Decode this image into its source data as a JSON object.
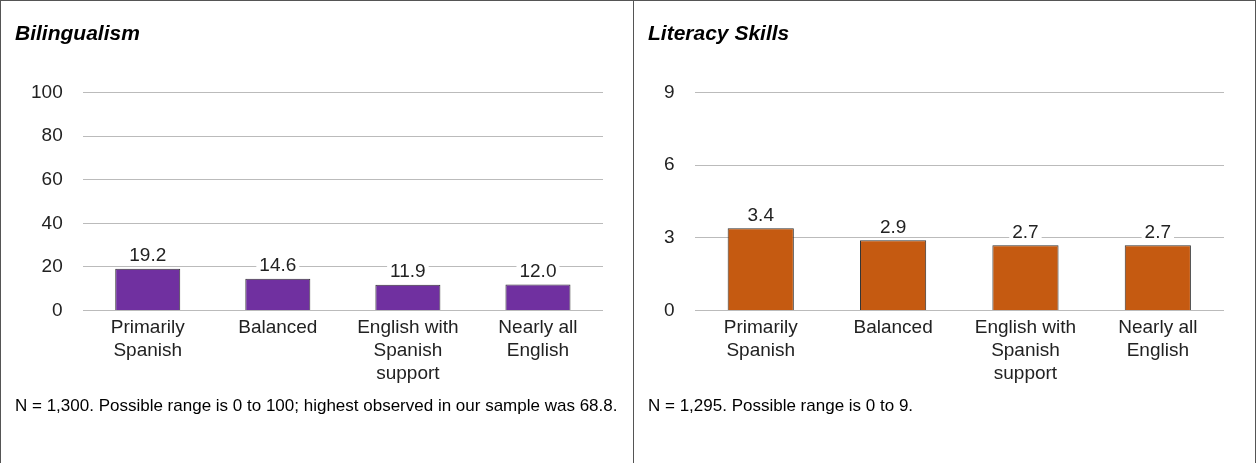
{
  "chart_data": [
    {
      "type": "bar",
      "title": "Bilingualism",
      "categories": [
        "Primarily Spanish",
        "Balanced",
        "English with Spanish support",
        "Nearly all English"
      ],
      "values": [
        19.2,
        14.6,
        11.9,
        12.0
      ],
      "value_labels": [
        "19.2",
        "14.6",
        "11.9",
        "12.0"
      ],
      "color": "#7030a0",
      "ylim": [
        0,
        100
      ],
      "yticks": [
        0,
        20,
        40,
        60,
        80,
        100
      ],
      "grid": "y",
      "annotations": [
        "N = 1,300. Possible range is 0 to 100; highest observed in our sample was 68.8."
      ]
    },
    {
      "type": "bar",
      "title": "Literacy Skills",
      "categories": [
        "Primarily Spanish",
        "Balanced",
        "English with Spanish support",
        "Nearly all English"
      ],
      "values": [
        3.4,
        2.9,
        2.7,
        2.7
      ],
      "value_labels": [
        "3.4",
        "2.9",
        "2.7",
        "2.7"
      ],
      "color": "#c55a11",
      "ylim": [
        0,
        9
      ],
      "yticks": [
        0,
        3,
        6,
        9
      ],
      "grid": "y",
      "annotations": [
        "N = 1,295. Possible range is 0 to 9."
      ]
    }
  ]
}
